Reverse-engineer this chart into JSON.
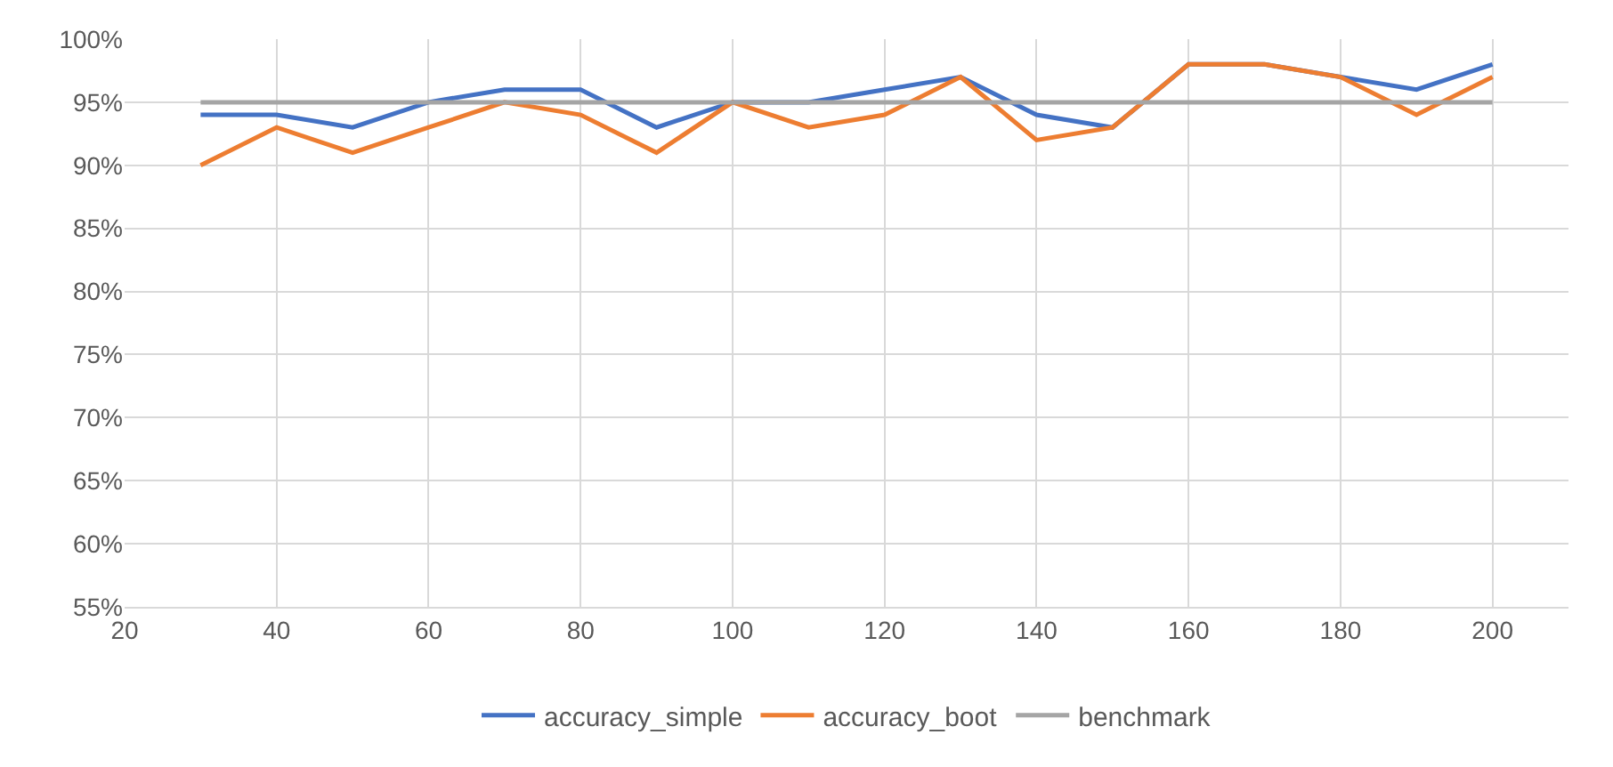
{
  "chart_data": {
    "type": "line",
    "x": [
      30,
      40,
      50,
      60,
      70,
      80,
      90,
      100,
      110,
      120,
      130,
      140,
      150,
      160,
      170,
      180,
      190,
      200
    ],
    "series": [
      {
        "name": "accuracy_simple",
        "color": "#4472c4",
        "values": [
          94,
          94,
          93,
          95,
          96,
          96,
          93,
          95,
          95,
          96,
          97,
          94,
          93,
          98,
          98,
          97,
          96,
          98
        ]
      },
      {
        "name": "accuracy_boot",
        "color": "#ed7d31",
        "values": [
          90,
          93,
          91,
          93,
          95,
          94,
          91,
          95,
          93,
          94,
          97,
          92,
          93,
          98,
          98,
          97,
          94,
          97
        ]
      },
      {
        "name": "benchmark",
        "color": "#a5a5a5",
        "values": [
          95,
          95,
          95,
          95,
          95,
          95,
          95,
          95,
          95,
          95,
          95,
          95,
          95,
          95,
          95,
          95,
          95,
          95
        ]
      }
    ],
    "xlim": [
      20,
      210
    ],
    "xticks": [
      20,
      40,
      60,
      80,
      100,
      120,
      140,
      160,
      180,
      200
    ],
    "ylim": [
      55,
      100
    ],
    "yticks": [
      {
        "value": 55,
        "label": "55%"
      },
      {
        "value": 60,
        "label": "60%"
      },
      {
        "value": 65,
        "label": "65%"
      },
      {
        "value": 70,
        "label": "70%"
      },
      {
        "value": 75,
        "label": "75%"
      },
      {
        "value": 80,
        "label": "80%"
      },
      {
        "value": 85,
        "label": "85%"
      },
      {
        "value": 90,
        "label": "90%"
      },
      {
        "value": 95,
        "label": "95%"
      },
      {
        "value": 100,
        "label": "100%"
      }
    ],
    "grid": true,
    "legend": "bottom",
    "marker": "none",
    "line_style": "solid"
  }
}
